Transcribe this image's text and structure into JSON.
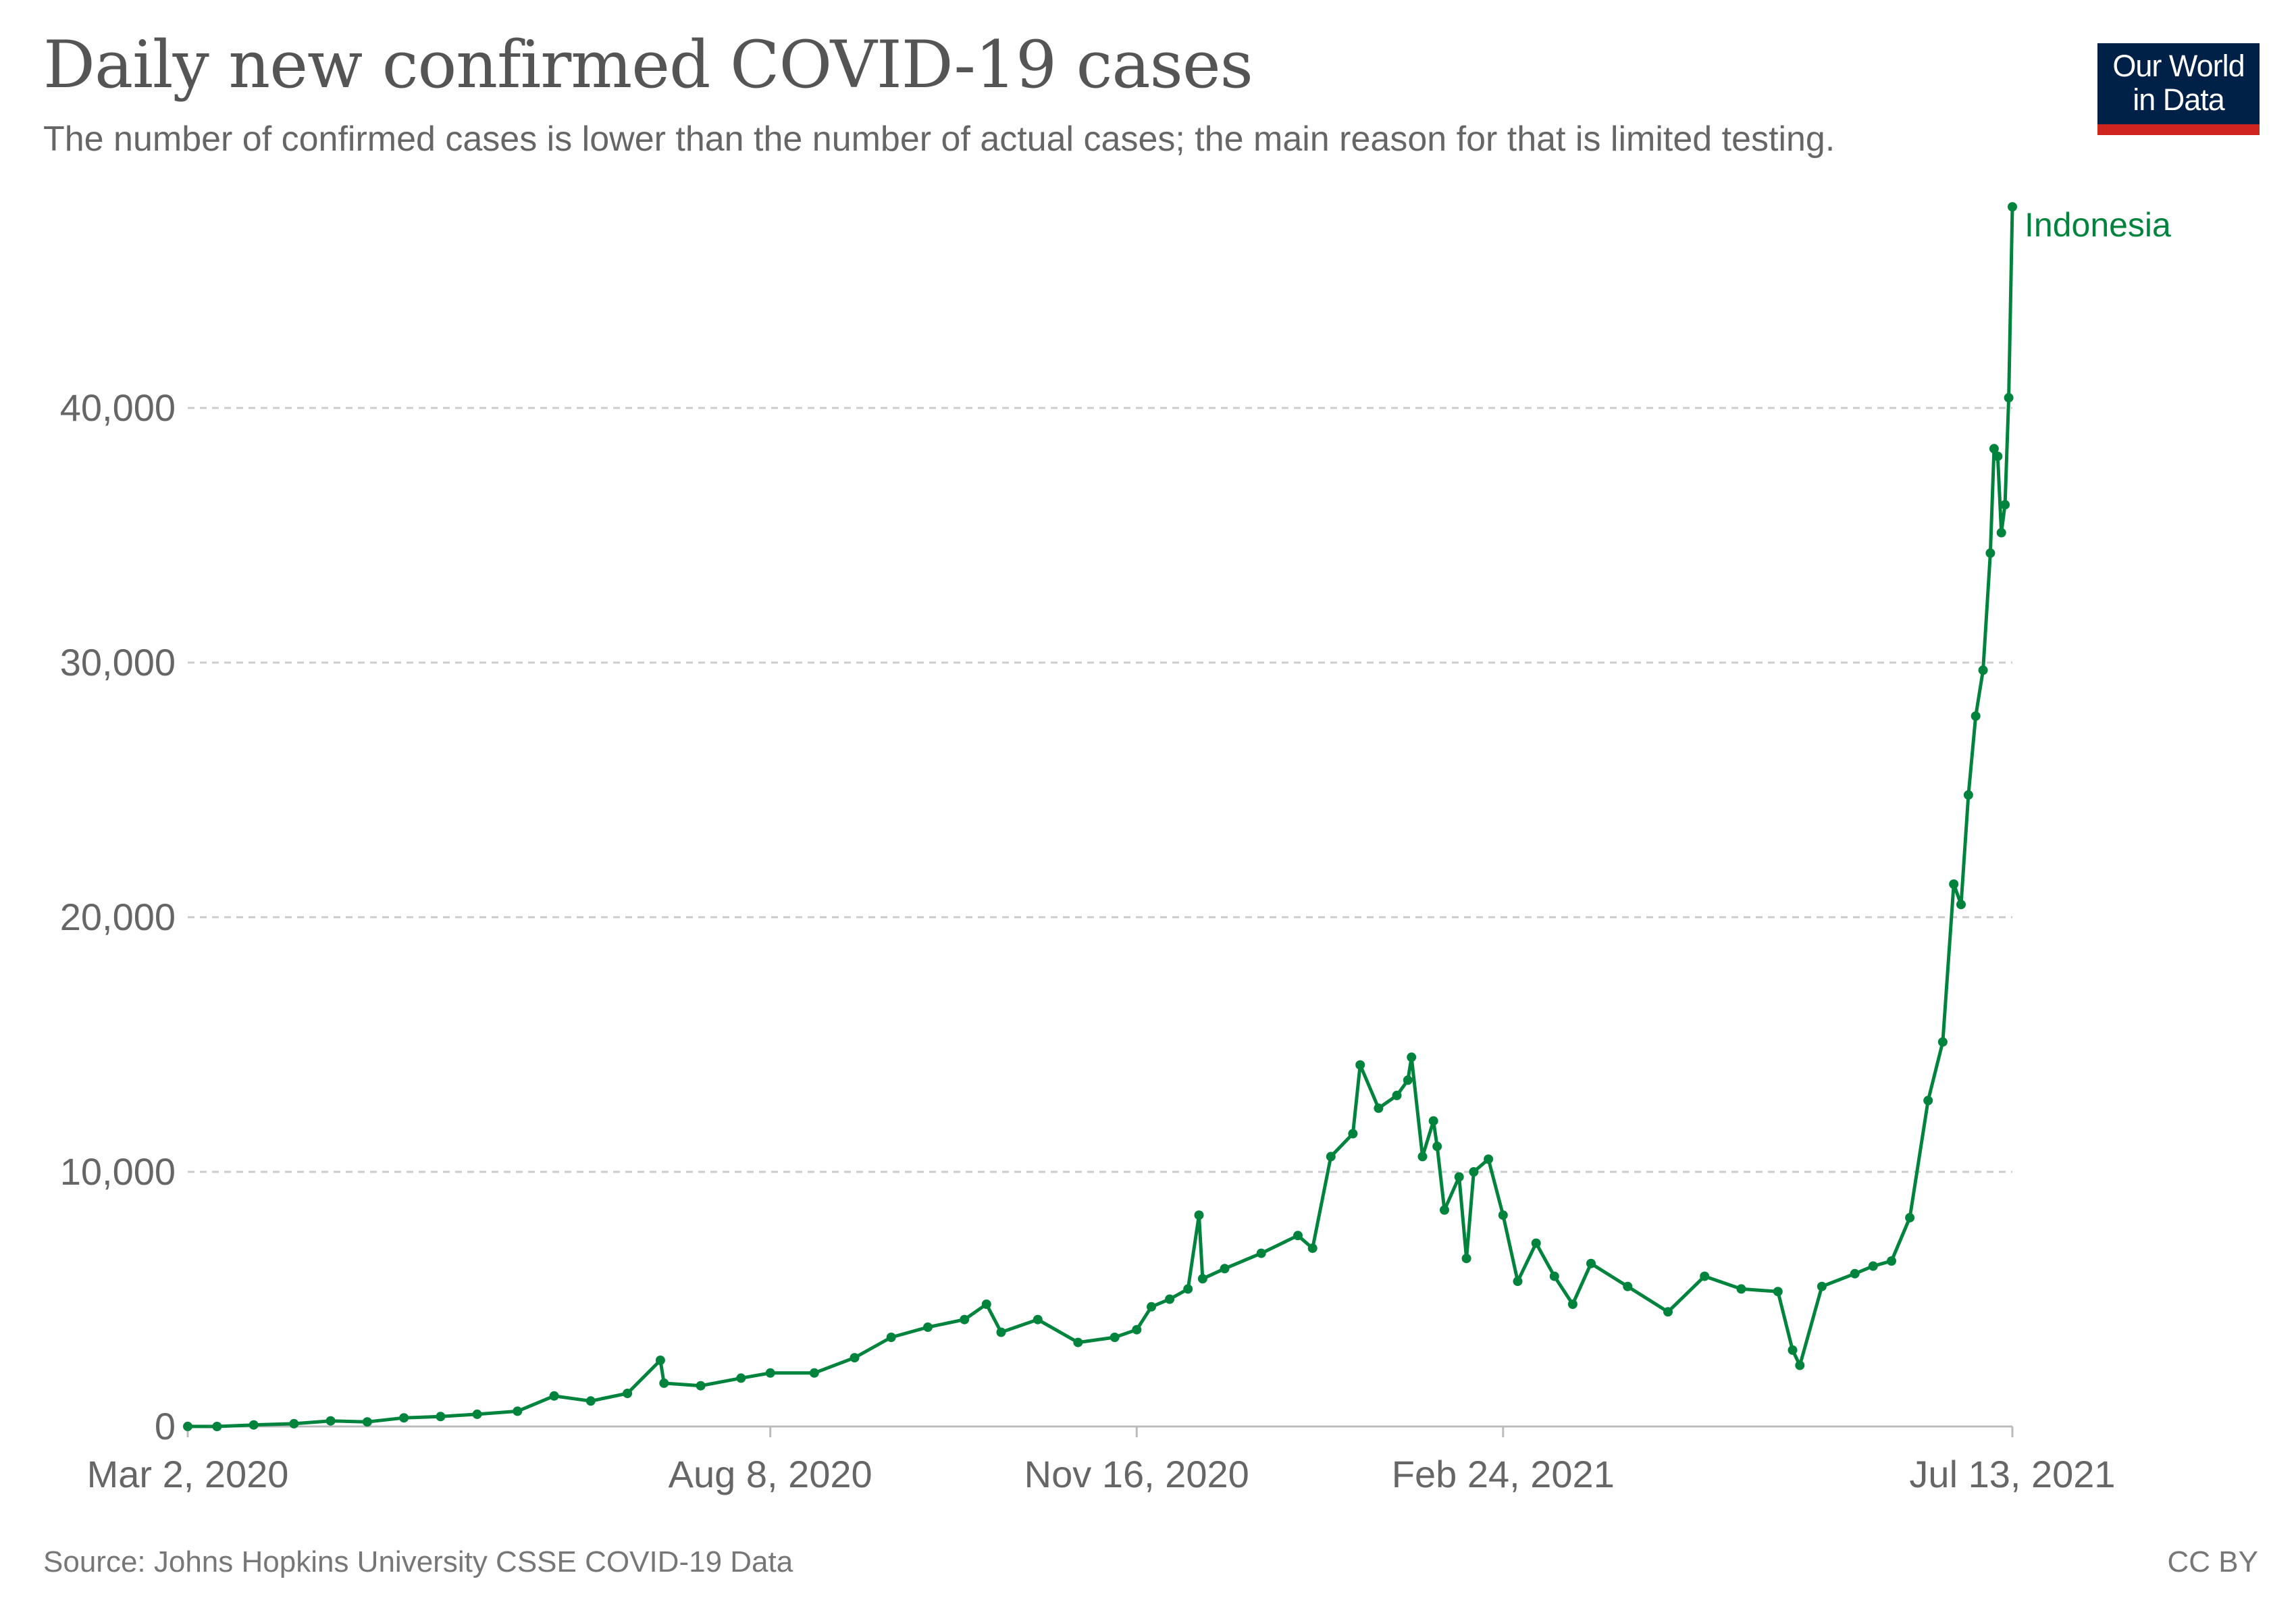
{
  "header": {
    "title": "Daily new confirmed COVID-19 cases",
    "subtitle": "The number of confirmed cases is lower than the number of actual cases; the main reason for that is limited testing."
  },
  "logo": {
    "line1": "Our World",
    "line2": "in Data",
    "background_color": "#002147",
    "accent_color": "#ce261e"
  },
  "footer": {
    "source": "Source: Johns Hopkins University CSSE COVID-19 Data",
    "license": "CC BY"
  },
  "chart_data": {
    "type": "line",
    "title": "Daily new confirmed COVID-19 cases",
    "subtitle": "The number of confirmed cases is lower than the number of actual cases; the main reason for that is limited testing.",
    "xlabel": "",
    "ylabel": "",
    "x_range": [
      "2020-03-02",
      "2021-07-15"
    ],
    "ylim": [
      0,
      48000
    ],
    "y_ticks": [
      0,
      10000,
      20000,
      30000,
      40000
    ],
    "y_tick_labels": [
      "0",
      "10,000",
      "20,000",
      "30,000",
      "40,000"
    ],
    "x_ticks": [
      "2020-03-02",
      "2020-08-08",
      "2020-11-16",
      "2021-02-24",
      "2021-07-13"
    ],
    "x_tick_labels": [
      "Mar 2, 2020",
      "Aug 8, 2020",
      "Nov 16, 2020",
      "Feb 24, 2021",
      "Jul 13, 2021"
    ],
    "grid": "horizontal dashed",
    "legend": "inline label at end of line",
    "series": [
      {
        "name": "Indonesia",
        "color": "#00843d",
        "points": [
          [
            "2020-03-02",
            2
          ],
          [
            "2020-03-10",
            0
          ],
          [
            "2020-03-20",
            60
          ],
          [
            "2020-03-31",
            110
          ],
          [
            "2020-04-10",
            220
          ],
          [
            "2020-04-20",
            180
          ],
          [
            "2020-04-30",
            340
          ],
          [
            "2020-05-10",
            390
          ],
          [
            "2020-05-20",
            480
          ],
          [
            "2020-05-31",
            600
          ],
          [
            "2020-06-10",
            1200
          ],
          [
            "2020-06-20",
            1000
          ],
          [
            "2020-06-30",
            1300
          ],
          [
            "2020-07-09",
            2600
          ],
          [
            "2020-07-10",
            1700
          ],
          [
            "2020-07-20",
            1600
          ],
          [
            "2020-07-31",
            1900
          ],
          [
            "2020-08-08",
            2100
          ],
          [
            "2020-08-20",
            2100
          ],
          [
            "2020-08-31",
            2700
          ],
          [
            "2020-09-10",
            3500
          ],
          [
            "2020-09-20",
            3900
          ],
          [
            "2020-09-30",
            4200
          ],
          [
            "2020-10-06",
            4800
          ],
          [
            "2020-10-10",
            3700
          ],
          [
            "2020-10-20",
            4200
          ],
          [
            "2020-10-31",
            3300
          ],
          [
            "2020-11-10",
            3500
          ],
          [
            "2020-11-16",
            3800
          ],
          [
            "2020-11-20",
            4700
          ],
          [
            "2020-11-25",
            5000
          ],
          [
            "2020-11-30",
            5400
          ],
          [
            "2020-12-03",
            8300
          ],
          [
            "2020-12-04",
            5800
          ],
          [
            "2020-12-10",
            6200
          ],
          [
            "2020-12-20",
            6800
          ],
          [
            "2020-12-30",
            7500
          ],
          [
            "2021-01-03",
            7000
          ],
          [
            "2021-01-08",
            10600
          ],
          [
            "2021-01-14",
            11500
          ],
          [
            "2021-01-16",
            14200
          ],
          [
            "2021-01-21",
            12500
          ],
          [
            "2021-01-26",
            13000
          ],
          [
            "2021-01-29",
            13600
          ],
          [
            "2021-01-30",
            14500
          ],
          [
            "2021-02-02",
            10600
          ],
          [
            "2021-02-05",
            12000
          ],
          [
            "2021-02-06",
            11000
          ],
          [
            "2021-02-08",
            8500
          ],
          [
            "2021-02-12",
            9800
          ],
          [
            "2021-02-14",
            6600
          ],
          [
            "2021-02-16",
            10000
          ],
          [
            "2021-02-20",
            10500
          ],
          [
            "2021-02-24",
            8300
          ],
          [
            "2021-02-28",
            5700
          ],
          [
            "2021-03-05",
            7200
          ],
          [
            "2021-03-10",
            5900
          ],
          [
            "2021-03-15",
            4800
          ],
          [
            "2021-03-20",
            6400
          ],
          [
            "2021-03-30",
            5500
          ],
          [
            "2021-04-10",
            4500
          ],
          [
            "2021-04-20",
            5900
          ],
          [
            "2021-04-30",
            5400
          ],
          [
            "2021-05-10",
            5300
          ],
          [
            "2021-05-14",
            3000
          ],
          [
            "2021-05-16",
            2400
          ],
          [
            "2021-05-22",
            5500
          ],
          [
            "2021-05-31",
            6000
          ],
          [
            "2021-06-05",
            6300
          ],
          [
            "2021-06-10",
            6500
          ],
          [
            "2021-06-15",
            8200
          ],
          [
            "2021-06-20",
            12800
          ],
          [
            "2021-06-24",
            15100
          ],
          [
            "2021-06-27",
            21300
          ],
          [
            "2021-06-29",
            20500
          ],
          [
            "2021-07-01",
            24800
          ],
          [
            "2021-07-03",
            27900
          ],
          [
            "2021-07-05",
            29700
          ],
          [
            "2021-07-07",
            34300
          ],
          [
            "2021-07-08",
            38400
          ],
          [
            "2021-07-09",
            38100
          ],
          [
            "2021-07-10",
            35100
          ],
          [
            "2021-07-11",
            36200
          ],
          [
            "2021-07-12",
            40400
          ],
          [
            "2021-07-13",
            47900
          ]
        ]
      }
    ]
  }
}
